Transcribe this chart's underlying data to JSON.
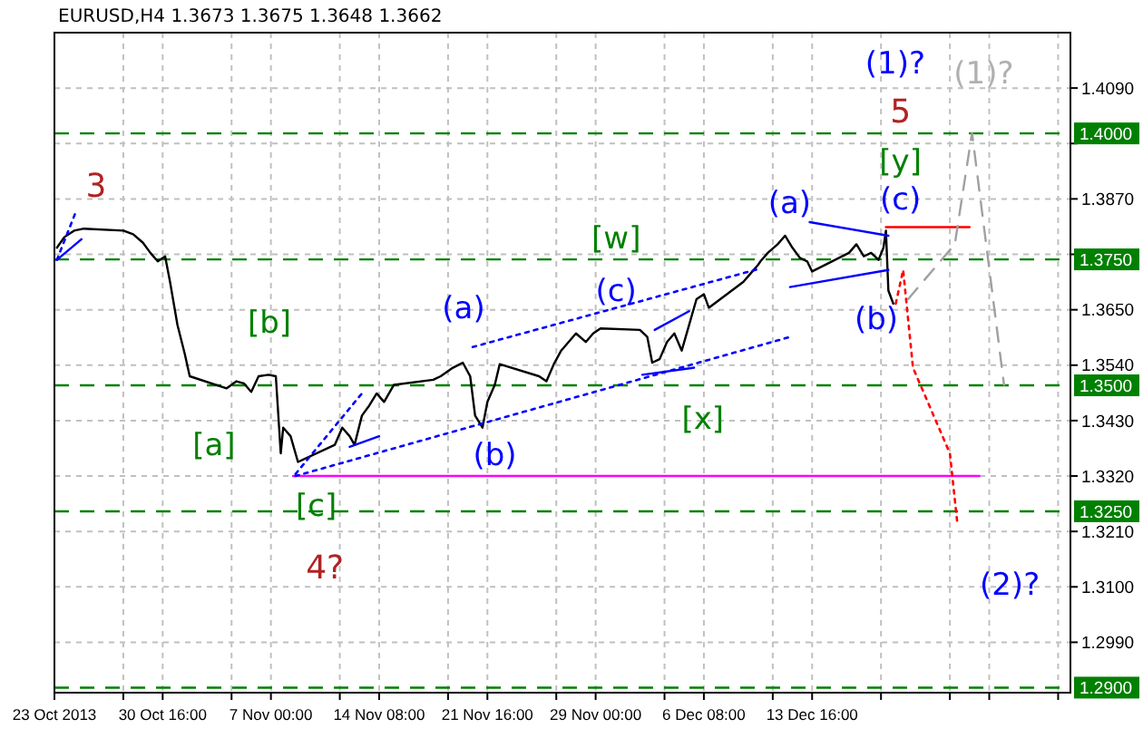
{
  "chart_data": {
    "type": "line",
    "title": "EURUSD,H4  1.3673 1.3675 1.3648 1.3662",
    "xlim": [
      "2013-10-23T08:00",
      "2013-12-31T04:00"
    ],
    "ylim": [
      1.289,
      1.42
    ],
    "xticks": [
      {
        "value": "2013-10-23T08:00",
        "label": "23 Oct 2013"
      },
      {
        "value": "2013-10-28T00:00",
        "label": null
      },
      {
        "value": "2013-10-30T16:00",
        "label": "30 Oct 16:00"
      },
      {
        "value": "2013-11-04T08:00",
        "label": null
      },
      {
        "value": "2013-11-07T00:00",
        "label": "7 Nov 00:00"
      },
      {
        "value": "2013-11-11T16:00",
        "label": null
      },
      {
        "value": "2013-11-14T08:00",
        "label": "14 Nov 08:00"
      },
      {
        "value": "2013-11-19T00:00",
        "label": null
      },
      {
        "value": "2013-11-21T16:00",
        "label": "21 Nov 16:00"
      },
      {
        "value": "2013-11-26T08:00",
        "label": null
      },
      {
        "value": "2013-11-29T00:00",
        "label": "29 Nov 00:00"
      },
      {
        "value": "2013-12-03T16:00",
        "label": null
      },
      {
        "value": "2013-12-06T08:00",
        "label": "6 Dec 08:00"
      },
      {
        "value": "2013-12-11T00:00",
        "label": null
      },
      {
        "value": "2013-12-13T16:00",
        "label": "13 Dec 16:00"
      },
      {
        "value": "2013-12-18T08:00",
        "label": null
      },
      {
        "value": "2013-12-23T00:00",
        "label": null
      },
      {
        "value": "2013-12-25T16:00",
        "label": null
      },
      {
        "value": "2013-12-30T08:00",
        "label": null
      }
    ],
    "yticks": [
      {
        "value": 1.409,
        "label": "1.4090"
      },
      {
        "value": 1.398,
        "label": null
      },
      {
        "value": 1.387,
        "label": "1.3870"
      },
      {
        "value": 1.376,
        "label": null
      },
      {
        "value": 1.365,
        "label": "1.3650"
      },
      {
        "value": 1.354,
        "label": "1.3540"
      },
      {
        "value": 1.343,
        "label": "1.3430"
      },
      {
        "value": 1.332,
        "label": "1.3320"
      },
      {
        "value": 1.321,
        "label": "1.3210"
      },
      {
        "value": 1.31,
        "label": "1.3100"
      },
      {
        "value": 1.299,
        "label": "1.2990"
      }
    ],
    "grid": true,
    "series": [
      {
        "color": "#000000",
        "x": [
          "2013-10-23T12:00",
          "2013-10-24T00:00",
          "2013-10-24T16:00",
          "2013-10-25T08:00",
          "2013-10-28T00:00",
          "2013-10-28T16:00",
          "2013-10-29T08:00",
          "2013-10-29T20:00",
          "2013-10-30T08:00",
          "2013-10-30T20:00",
          "2013-10-31T04:00",
          "2013-10-31T16:00",
          "2013-11-01T04:00",
          "2013-11-01T12:00",
          "2013-11-04T00:00",
          "2013-11-04T16:00",
          "2013-11-05T04:00",
          "2013-11-05T16:00",
          "2013-11-06T04:00",
          "2013-11-06T20:00",
          "2013-11-07T08:00",
          "2013-11-07T16:00",
          "2013-11-07T20:00",
          "2013-11-08T08:00",
          "2013-11-08T20:00",
          "2013-11-11T08:00",
          "2013-11-11T20:00",
          "2013-11-12T08:00",
          "2013-11-12T16:00",
          "2013-11-13T04:00",
          "2013-11-13T16:00",
          "2013-11-14T04:00",
          "2013-11-14T16:00",
          "2013-11-15T08:00",
          "2013-11-18T00:00",
          "2013-11-18T12:00",
          "2013-11-19T08:00",
          "2013-11-20T00:00",
          "2013-11-20T12:00",
          "2013-11-20T20:00",
          "2013-11-21T08:00",
          "2013-11-21T16:00",
          "2013-11-22T04:00",
          "2013-11-22T12:00",
          "2013-11-25T04:00",
          "2013-11-25T16:00",
          "2013-11-26T04:00",
          "2013-11-26T16:00",
          "2013-11-27T04:00",
          "2013-11-27T16:00",
          "2013-11-28T08:00",
          "2013-11-28T20:00",
          "2013-11-29T08:00",
          "2013-12-02T00:00",
          "2013-12-02T12:00",
          "2013-12-02T20:00",
          "2013-12-03T08:00",
          "2013-12-03T20:00",
          "2013-12-04T08:00",
          "2013-12-04T20:00",
          "2013-12-05T08:00",
          "2013-12-05T20:00",
          "2013-12-06T08:00",
          "2013-12-06T16:00",
          "2013-12-09T00:00",
          "2013-12-09T12:00",
          "2013-12-10T00:00",
          "2013-12-10T04:00",
          "2013-12-10T16:00",
          "2013-12-11T08:00",
          "2013-12-11T20:00",
          "2013-12-12T08:00",
          "2013-12-12T20:00",
          "2013-12-13T08:00",
          "2013-12-13T16:00",
          "2013-12-16T04:00",
          "2013-12-16T16:00",
          "2013-12-17T04:00",
          "2013-12-17T16:00",
          "2013-12-18T04:00",
          "2013-12-18T12:00",
          "2013-12-18T16:00",
          "2013-12-18T20:00",
          "2013-12-19T04:00"
        ],
        "values": [
          1.3773,
          1.3794,
          1.3807,
          1.3811,
          1.3807,
          1.38,
          1.3783,
          1.3763,
          1.3746,
          1.3756,
          1.3705,
          1.362,
          1.3562,
          1.3518,
          1.3494,
          1.3508,
          1.3504,
          1.3487,
          1.3518,
          1.3521,
          1.3518,
          1.3365,
          1.3416,
          1.3399,
          1.3348,
          1.3382,
          1.3416,
          1.3399,
          1.3382,
          1.344,
          1.346,
          1.3484,
          1.3467,
          1.3501,
          1.3511,
          1.3518,
          1.3535,
          1.3545,
          1.3518,
          1.344,
          1.3416,
          1.3467,
          1.3501,
          1.3542,
          1.3518,
          1.3508,
          1.3542,
          1.3569,
          1.3586,
          1.3603,
          1.3586,
          1.3603,
          1.3613,
          1.361,
          1.3596,
          1.3545,
          1.3552,
          1.3586,
          1.3603,
          1.3569,
          1.362,
          1.3671,
          1.3681,
          1.3654,
          1.3705,
          1.3722,
          1.3739,
          1.3746,
          1.3763,
          1.378,
          1.3797,
          1.3773,
          1.3753,
          1.3746,
          1.3726,
          1.3763,
          1.378,
          1.3756,
          1.3763,
          1.3749,
          1.3773,
          1.3807,
          1.3688,
          1.3662
        ]
      },
      {
        "color": "#ff00ff",
        "x": [
          "2013-11-08T12:00",
          "2013-12-25T00:00"
        ],
        "values": [
          1.332,
          1.332
        ]
      },
      {
        "color": "#ff0000",
        "x": [
          "2013-12-18T16:00",
          "2013-12-24T08:00"
        ],
        "values": [
          1.3814,
          1.3814
        ]
      },
      {
        "color": "#ff0000",
        "line_style": "dotted",
        "x": [
          "2013-12-19T08:00",
          "2013-12-19T20:00",
          "2013-12-20T12:00",
          "2013-12-23T00:00",
          "2013-12-23T12:00"
        ],
        "values": [
          1.3662,
          1.3729,
          1.3535,
          1.3365,
          1.3228
        ]
      },
      {
        "color": "#a0a0a0",
        "line_style": "dashed",
        "x": [
          "2013-12-20T04:00",
          "2013-12-23T08:00",
          "2013-12-24T12:00",
          "2013-12-26T16:00"
        ],
        "values": [
          1.3671,
          1.378,
          1.4001,
          1.3501
        ]
      },
      {
        "color": "#0000ff",
        "line_style": "dotted",
        "x": [
          "2013-11-08T16:00",
          "2013-12-12T04:00"
        ],
        "values": [
          1.332,
          1.3596
        ]
      },
      {
        "color": "#0000ff",
        "line_style": "dotted",
        "x": [
          "2013-11-20T16:00",
          "2013-12-10T04:00"
        ],
        "values": [
          1.3576,
          1.3732
        ]
      },
      {
        "color": "#0000ff",
        "x": [
          "2013-12-13T12:00",
          "2013-12-18T20:00"
        ],
        "values": [
          1.3824,
          1.3797
        ]
      },
      {
        "color": "#0000ff",
        "x": [
          "2013-12-12T04:00",
          "2013-12-18T20:00"
        ],
        "values": [
          1.3695,
          1.3729
        ]
      },
      {
        "color": "#0000ff",
        "x": [
          "2013-12-03T00:00",
          "2013-12-05T08:00"
        ],
        "values": [
          1.361,
          1.3647
        ]
      },
      {
        "color": "#0000ff",
        "x": [
          "2013-12-02T04:00",
          "2013-12-05T16:00"
        ],
        "values": [
          1.3521,
          1.3535
        ]
      },
      {
        "color": "#0000ff",
        "line_style": "dotted",
        "x": [
          "2013-11-08T16:00",
          "2013-11-13T04:00"
        ],
        "values": [
          1.3324,
          1.3484
        ]
      },
      {
        "color": "#0000ff",
        "x": [
          "2013-11-12T08:00",
          "2013-11-14T08:00"
        ],
        "values": [
          1.3378,
          1.3399
        ]
      },
      {
        "color": "#0000ff",
        "line_style": "dotted",
        "x": [
          "2013-10-23T12:00",
          "2013-10-24T20:00"
        ],
        "values": [
          1.3749,
          1.3848
        ]
      },
      {
        "color": "#0000ff",
        "x": [
          "2013-10-23T12:00",
          "2013-10-25T04:00"
        ],
        "values": [
          1.3749,
          1.379
        ]
      }
    ],
    "ref_lines": [
      {
        "axis": "y",
        "value": 1.4,
        "label": "1.4000",
        "color": "#008000",
        "line_style": "dashed"
      },
      {
        "axis": "y",
        "value": 1.375,
        "label": "1.3750",
        "color": "#008000",
        "line_style": "dashed"
      },
      {
        "axis": "y",
        "value": 1.35,
        "label": "1.3500",
        "color": "#008000",
        "line_style": "dashed"
      },
      {
        "axis": "y",
        "value": 1.325,
        "label": "1.3250",
        "color": "#008000",
        "line_style": "dashed"
      },
      {
        "axis": "y",
        "value": 1.29,
        "label": "1.2900",
        "color": "#008000",
        "line_style": "dashed"
      }
    ],
    "annotations": [
      "3",
      "[a]",
      "[b]",
      "[c]",
      "4?",
      "(a)",
      "(b)",
      "(c)",
      "[w]",
      "[x]",
      "(a)",
      "(b)",
      "(c)",
      "[y]",
      "5",
      "(1)?",
      "(1)?",
      "(2)?"
    ]
  }
}
